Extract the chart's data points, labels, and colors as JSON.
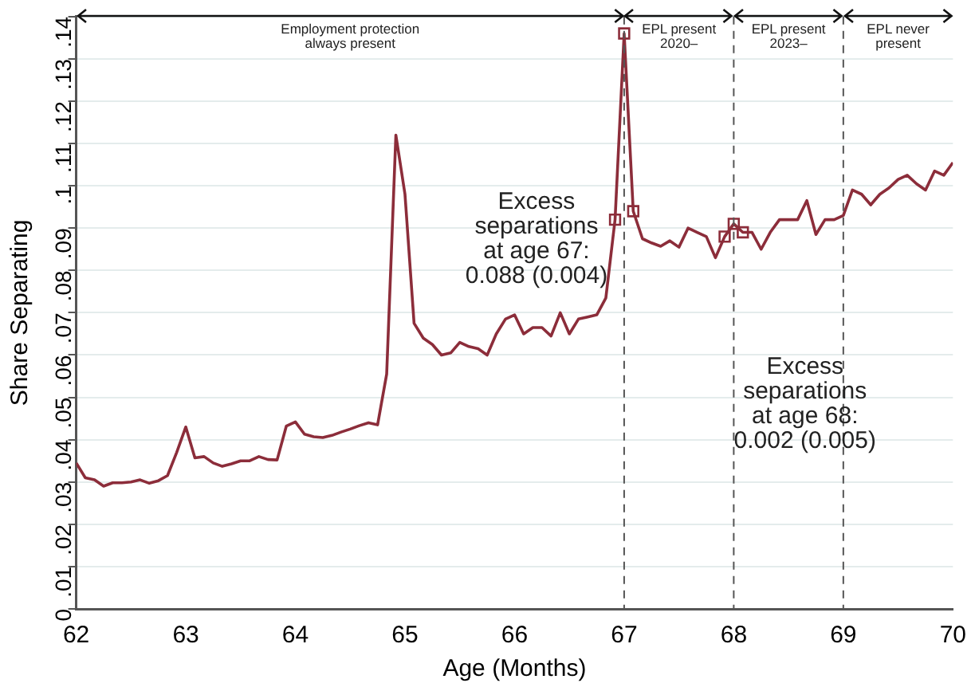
{
  "chart_data": {
    "type": "line",
    "xlabel": "Age (Months)",
    "ylabel": "Share Separating",
    "x": [
      62,
      62.083,
      62.167,
      62.25,
      62.333,
      62.417,
      62.5,
      62.583,
      62.667,
      62.75,
      62.833,
      62.917,
      63,
      63.083,
      63.167,
      63.25,
      63.333,
      63.417,
      63.5,
      63.583,
      63.667,
      63.75,
      63.833,
      63.917,
      64,
      64.083,
      64.167,
      64.25,
      64.333,
      64.417,
      64.5,
      64.583,
      64.667,
      64.75,
      64.833,
      64.917,
      65,
      65.083,
      65.167,
      65.25,
      65.333,
      65.417,
      65.5,
      65.583,
      65.667,
      65.75,
      65.833,
      65.917,
      66,
      66.083,
      66.167,
      66.25,
      66.333,
      66.417,
      66.5,
      66.583,
      66.667,
      66.75,
      66.833,
      66.917,
      67,
      67.083,
      67.167,
      67.25,
      67.333,
      67.417,
      67.5,
      67.583,
      67.667,
      67.75,
      67.833,
      67.917,
      68,
      68.083,
      68.167,
      68.25,
      68.333,
      68.417,
      68.5,
      68.583,
      68.667,
      68.75,
      68.833,
      68.917,
      69,
      69.083,
      69.167,
      69.25,
      69.333,
      69.417,
      69.5,
      69.583,
      69.667,
      69.75,
      69.833,
      69.917,
      70
    ],
    "series": [
      {
        "type": "line",
        "color": "#8c2d3a",
        "marker": "none",
        "values": [
          0.0345,
          0.031,
          0.0305,
          0.029,
          0.0298,
          0.0298,
          0.03,
          0.0305,
          0.0297,
          0.0303,
          0.0315,
          0.037,
          0.043,
          0.0357,
          0.036,
          0.0345,
          0.0337,
          0.0343,
          0.035,
          0.035,
          0.036,
          0.0353,
          0.0352,
          0.0432,
          0.0442,
          0.0413,
          0.0407,
          0.0405,
          0.041,
          0.0418,
          0.0425,
          0.0433,
          0.044,
          0.0435,
          0.0555,
          0.112,
          0.098,
          0.0675,
          0.064,
          0.0625,
          0.06,
          0.0605,
          0.063,
          0.062,
          0.0615,
          0.06,
          0.065,
          0.0685,
          0.0695,
          0.065,
          0.0665,
          0.0665,
          0.0645,
          0.07,
          0.065,
          0.0685,
          0.069,
          0.0695,
          0.0735,
          0.092,
          0.136,
          0.094,
          0.0875,
          0.0865,
          0.0857,
          0.087,
          0.0855,
          0.09,
          0.089,
          0.088,
          0.083,
          0.088,
          0.091,
          0.089,
          0.089,
          0.085,
          0.089,
          0.092,
          0.092,
          0.092,
          0.0965,
          0.0885,
          0.092,
          0.092,
          0.093,
          0.099,
          0.098,
          0.0955,
          0.098,
          0.0995,
          0.1015,
          0.1025,
          0.1005,
          0.099,
          0.1035,
          0.1025,
          0.1055
        ]
      },
      {
        "type": "scatter",
        "color": "#8c2d3a",
        "marker": "square",
        "x": [
          66.917,
          67,
          67.083,
          67.917,
          68,
          68.083
        ],
        "values": [
          0.092,
          0.136,
          0.094,
          0.088,
          0.091,
          0.089
        ]
      }
    ],
    "xlim": [
      62,
      70
    ],
    "xticks": [
      62,
      63,
      64,
      65,
      66,
      67,
      68,
      69,
      70
    ],
    "ylim": [
      0,
      0.14
    ],
    "yticks": [
      0,
      {
        "value": 0.01,
        "label": ".01"
      },
      {
        "value": 0.02,
        "label": ".02"
      },
      {
        "value": 0.03,
        "label": ".03"
      },
      {
        "value": 0.04,
        "label": ".04"
      },
      {
        "value": 0.05,
        "label": ".05"
      },
      {
        "value": 0.06,
        "label": ".06"
      },
      {
        "value": 0.07,
        "label": ".07"
      },
      {
        "value": 0.08,
        "label": ".08"
      },
      {
        "value": 0.09,
        "label": ".09"
      },
      {
        "value": 0.1,
        "label": ".1"
      },
      {
        "value": 0.11,
        "label": ".11"
      },
      {
        "value": 0.12,
        "label": ".12"
      },
      {
        "value": 0.13,
        "label": ".13"
      },
      {
        "value": 0.14,
        "label": ".14"
      }
    ],
    "grid": "y",
    "legend": false,
    "ref_lines": [
      {
        "axis": "x",
        "value": 67,
        "color": "#555555",
        "line_style": "dashed"
      },
      {
        "axis": "x",
        "value": 68,
        "color": "#555555",
        "line_style": "dashed"
      },
      {
        "axis": "x",
        "value": 69,
        "color": "#555555",
        "line_style": "dashed"
      }
    ],
    "annotations": [
      "Employment protection\nalways present",
      "EPL present\n2020–",
      "EPL present\n2023–",
      "EPL never\npresent",
      "Excess\nseparations\nat age 67:\n0.088 (0.004)",
      "Excess\nseparations\nat age 68:\n0.002 (0.005)"
    ]
  }
}
